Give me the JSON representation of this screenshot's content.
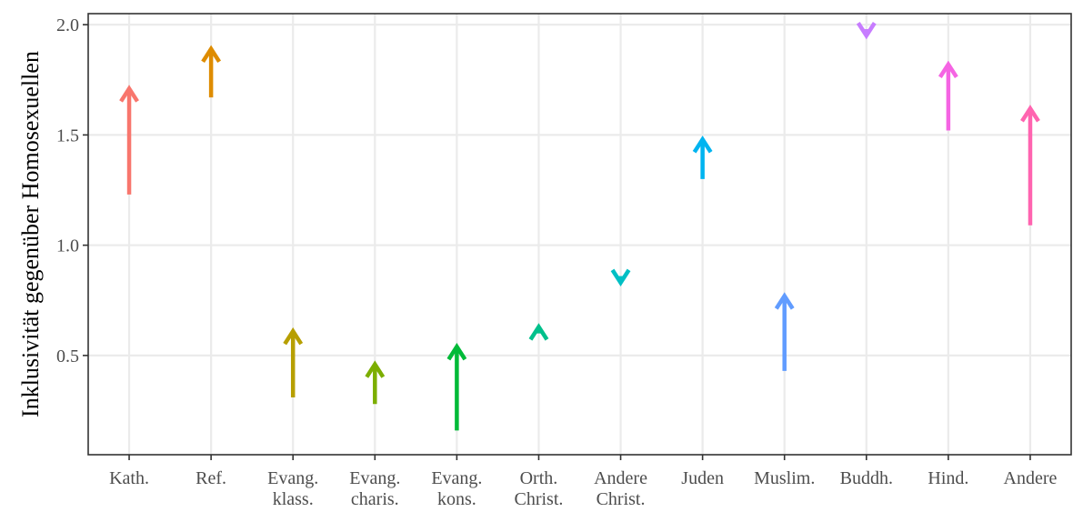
{
  "chart_data": {
    "type": "arrow",
    "title": "",
    "xlabel": "",
    "ylabel": "Inklusivität gegenüber Homosexuellen",
    "ylim": [
      0.05,
      2.05
    ],
    "yticks": [
      0.5,
      1.0,
      1.5,
      2.0
    ],
    "ytick_labels": [
      "0.5",
      "1.0",
      "1.5",
      "2.0"
    ],
    "grid": true,
    "legend": "none",
    "categories": [
      {
        "label": [
          "Kath."
        ],
        "start": 1.23,
        "end": 1.71,
        "color": "#F8766D"
      },
      {
        "label": [
          "Ref."
        ],
        "start": 1.67,
        "end": 1.89,
        "color": "#DE8C00"
      },
      {
        "label": [
          "Evang.",
          "klass."
        ],
        "start": 0.31,
        "end": 0.61,
        "color": "#B79F00"
      },
      {
        "label": [
          "Evang.",
          "charis."
        ],
        "start": 0.28,
        "end": 0.46,
        "color": "#7CAE00"
      },
      {
        "label": [
          "Evang.",
          "kons."
        ],
        "start": 0.16,
        "end": 0.54,
        "color": "#00BA38"
      },
      {
        "label": [
          "Orth.",
          "Christ."
        ],
        "start": 0.6,
        "end": 0.63,
        "color": "#00C08B"
      },
      {
        "label": [
          "Andere",
          "Christ."
        ],
        "start": 0.86,
        "end": 0.83,
        "color": "#00BFC4"
      },
      {
        "label": [
          "Juden"
        ],
        "start": 1.3,
        "end": 1.48,
        "color": "#00B4F0"
      },
      {
        "label": [
          "Muslim."
        ],
        "start": 0.43,
        "end": 0.77,
        "color": "#619CFF"
      },
      {
        "label": [
          "Buddh."
        ],
        "start": 1.98,
        "end": 1.95,
        "color": "#C77CFF"
      },
      {
        "label": [
          "Hind."
        ],
        "start": 1.52,
        "end": 1.82,
        "color": "#F564E3"
      },
      {
        "label": [
          "Andere"
        ],
        "start": 1.09,
        "end": 1.62,
        "color": "#FF64B0"
      }
    ]
  }
}
